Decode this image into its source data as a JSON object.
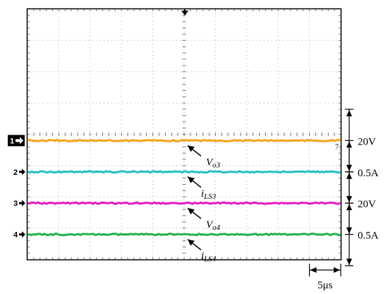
{
  "chart_data": {
    "type": "line",
    "title": "",
    "time_scale_label": "5μs",
    "grid": true,
    "grid_divisions": {
      "x": 10,
      "y": 8
    },
    "series": [
      {
        "name": "Vo3",
        "label_main": "V",
        "label_sub": "o3",
        "channel_marker": "1",
        "scale_label": "20V",
        "color": "#F5A31A",
        "level_div": 3.8,
        "trace_marker": "7"
      },
      {
        "name": "iLS3",
        "label_main": "i",
        "label_sub": "LS3",
        "channel_marker": "2",
        "scale_label": "0.5A",
        "color": "#22BFC9",
        "level_div": 2.8
      },
      {
        "name": "Vo4",
        "label_main": "V",
        "label_sub": "o4",
        "channel_marker": "3",
        "scale_label": "20V",
        "color": "#E519C9",
        "level_div": 1.8
      },
      {
        "name": "iLS4",
        "label_main": "i",
        "label_sub": "LS4",
        "channel_marker": "4",
        "scale_label": "0.5A",
        "color": "#22B14C",
        "level_div": 0.8
      }
    ]
  }
}
